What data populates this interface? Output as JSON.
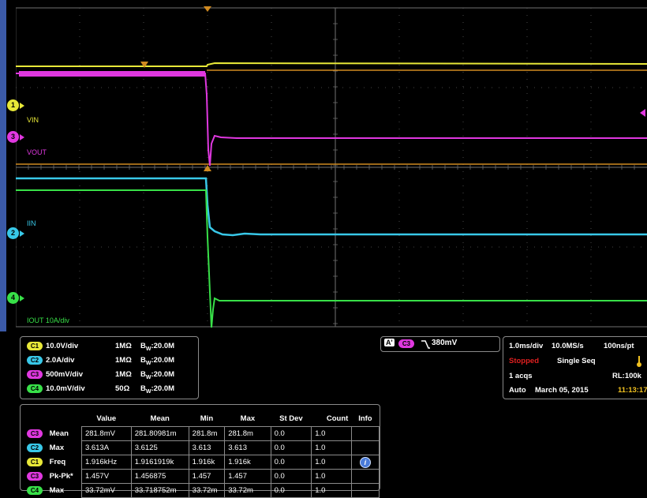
{
  "waveform": {
    "channel_markers": [
      {
        "num": "1",
        "color": "#e8e838",
        "label": "VIN"
      },
      {
        "num": "3",
        "color": "#e038e0",
        "label": "VOUT"
      },
      {
        "num": "2",
        "color": "#38c8e8",
        "label": "IIN"
      },
      {
        "num": "4",
        "color": "#38e048",
        "label": "IOUT 10A/div"
      }
    ]
  },
  "channels": [
    {
      "badge": "C1",
      "scale": "10.0V/div",
      "impedance": "1MΩ",
      "bw_prefix": "B",
      "bw_sub": "W",
      "bw_val": ":20.0M",
      "color": "#e8e838"
    },
    {
      "badge": "C2",
      "scale": "2.0A/div",
      "impedance": "1MΩ",
      "bw_prefix": "B",
      "bw_sub": "W",
      "bw_val": ":20.0M",
      "color": "#38c8e8"
    },
    {
      "badge": "C3",
      "scale": "500mV/div",
      "impedance": "1MΩ",
      "bw_prefix": "B",
      "bw_sub": "W",
      "bw_val": ":20.0M",
      "color": "#e038e0"
    },
    {
      "badge": "C4",
      "scale": "10.0mV/div",
      "impedance": "50Ω",
      "bw_prefix": "B",
      "bw_sub": "W",
      "bw_val": ":20.0M",
      "color": "#38e048"
    }
  ],
  "trigger": {
    "a_label": "A'",
    "badge": "C3",
    "slope_symbol": "⌐",
    "level": "380mV"
  },
  "acquisition": {
    "timebase": "1.0ms/div",
    "sample_rate": "10.0MS/s",
    "resolution": "100ns/pt",
    "status": "Stopped",
    "mode": "Single Seq",
    "acqs": "1 acqs",
    "record_length": "RL:100k",
    "trigger_mode": "Auto",
    "date": "March 05, 2015",
    "time": "11:13:17"
  },
  "measurements": {
    "headers": [
      "Value",
      "Mean",
      "Min",
      "Max",
      "St Dev",
      "Count",
      "Info"
    ],
    "rows": [
      {
        "badge": "C3",
        "name": "Mean",
        "value": "281.8mV",
        "mean": "281.80981m",
        "min": "281.8m",
        "max": "281.8m",
        "stdev": "0.0",
        "count": "1.0",
        "info": ""
      },
      {
        "badge": "C2",
        "name": "Max",
        "value": "3.613A",
        "mean": "3.6125",
        "min": "3.613",
        "max": "3.613",
        "stdev": "0.0",
        "count": "1.0",
        "info": ""
      },
      {
        "badge": "C1",
        "name": "Freq",
        "value": "1.916kHz",
        "mean": "1.9161919k",
        "min": "1.916k",
        "max": "1.916k",
        "stdev": "0.0",
        "count": "1.0",
        "info": "i"
      },
      {
        "badge": "C3",
        "name": "Pk-Pk*",
        "value": "1.457V",
        "mean": "1.456875",
        "min": "1.457",
        "max": "1.457",
        "stdev": "0.0",
        "count": "1.0",
        "info": ""
      },
      {
        "badge": "C4",
        "name": "Max",
        "value": "33.72mV",
        "mean": "33.718752m",
        "min": "33.72m",
        "max": "33.72m",
        "stdev": "0.0",
        "count": "1.0",
        "info": ""
      }
    ]
  }
}
